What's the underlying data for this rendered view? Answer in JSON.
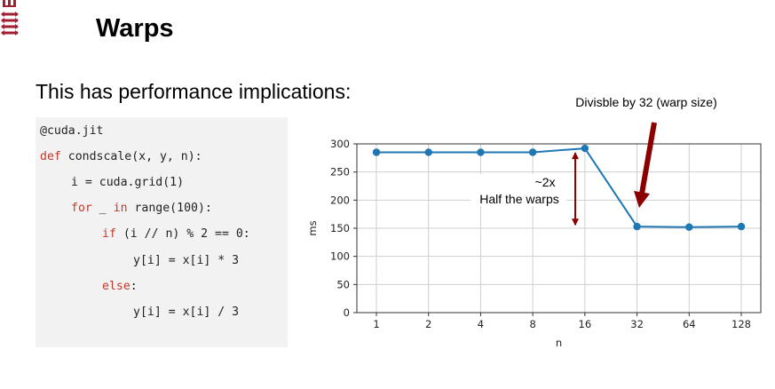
{
  "slide": {
    "title": "Warps",
    "subtitle": "This has performance implications:"
  },
  "code": {
    "lines": [
      {
        "indent": 0,
        "parts": [
          {
            "t": "@cuda.jit"
          }
        ]
      },
      {
        "indent": 0,
        "parts": [
          {
            "t": "def",
            "kw": true
          },
          {
            "t": " condscale(x, y, n):"
          }
        ]
      },
      {
        "indent": 1,
        "parts": [
          {
            "t": "i = cuda.grid(1)"
          }
        ]
      },
      {
        "indent": 1,
        "parts": [
          {
            "t": "for",
            "kw": true
          },
          {
            "t": " _ "
          },
          {
            "t": "in",
            "kw": true
          },
          {
            "t": " range(100):"
          }
        ]
      },
      {
        "indent": 2,
        "parts": [
          {
            "t": "if",
            "kw": true
          },
          {
            "t": " (i // n) % 2 == 0:"
          }
        ]
      },
      {
        "indent": 3,
        "parts": [
          {
            "t": "y[i] = x[i] * 3"
          }
        ]
      },
      {
        "indent": 2,
        "parts": [
          {
            "t": "else",
            "kw": true
          },
          {
            "t": ":"
          }
        ]
      },
      {
        "indent": 3,
        "parts": [
          {
            "t": "y[i] = x[i] / 3"
          }
        ]
      }
    ]
  },
  "chart_data": {
    "type": "line",
    "categories": [
      "1",
      "2",
      "4",
      "8",
      "16",
      "32",
      "64",
      "128"
    ],
    "series": [
      {
        "values": [
          285,
          285,
          285,
          285,
          292,
          153,
          152,
          153
        ],
        "color": "#1f77b4"
      }
    ],
    "xlabel": "n",
    "ylabel": "ms",
    "ylim": [
      0,
      300
    ],
    "yticks": [
      0,
      50,
      100,
      150,
      200,
      250,
      300
    ],
    "grid": true,
    "annotations": [
      {
        "text": "Divisble by 32 (warp size)",
        "color": "#000000"
      },
      {
        "text_lines": [
          "~2x",
          "Half the warps"
        ],
        "color": "#000000"
      }
    ],
    "arrow_color": "#8b0000"
  }
}
